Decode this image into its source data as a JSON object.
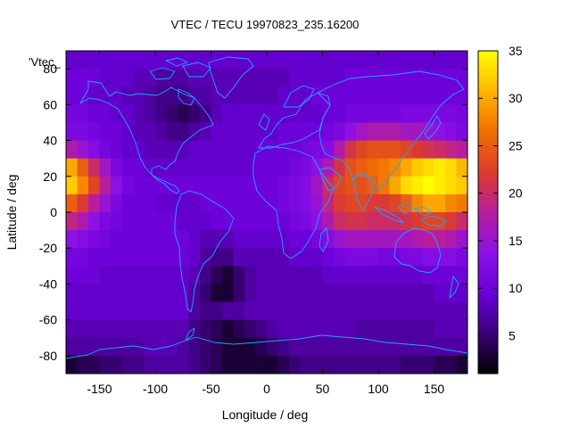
{
  "chart_data": {
    "type": "heatmap",
    "title": "VTEC / TECU 19970823_235.16200",
    "xlabel": "Longitude / deg",
    "ylabel": "Latitude / deg",
    "series_label": "'Vtec_",
    "xlim": [
      -180,
      180
    ],
    "ylim": [
      -90,
      90
    ],
    "xticks": [
      -150,
      -100,
      -50,
      0,
      50,
      100,
      150
    ],
    "yticks": [
      -80,
      -60,
      -40,
      -20,
      0,
      20,
      40,
      60,
      80
    ],
    "colorbar": {
      "range": [
        1,
        35
      ],
      "ticks": [
        5,
        10,
        15,
        20,
        25,
        30,
        35
      ],
      "palette": [
        "#000000",
        "#3a0078",
        "#6a00d8",
        "#8a10e6",
        "#b81e9c",
        "#dc3c2c",
        "#f07000",
        "#ffb400",
        "#ffff00"
      ]
    },
    "grid": {
      "lon_centers": [
        -175,
        -165,
        -155,
        -145,
        -135,
        -125,
        -115,
        -105,
        -95,
        -85,
        -75,
        -65,
        -55,
        -45,
        -35,
        -25,
        -15,
        -5,
        5,
        15,
        25,
        35,
        45,
        55,
        65,
        75,
        85,
        95,
        105,
        115,
        125,
        135,
        145,
        155,
        165,
        175
      ],
      "lat_centers": [
        85,
        75,
        65,
        55,
        45,
        35,
        25,
        15,
        5,
        -5,
        -15,
        -25,
        -35,
        -45,
        -55,
        -65,
        -75,
        -85
      ],
      "values": [
        [
          9,
          9,
          9,
          9,
          9,
          9,
          9,
          9,
          9,
          9,
          9,
          9,
          9,
          9,
          9,
          9,
          9,
          9,
          9,
          9,
          9,
          9,
          9,
          9,
          9,
          9,
          9,
          9,
          9,
          9,
          9,
          9,
          9,
          9,
          9,
          9
        ],
        [
          10,
          10,
          10,
          9,
          9,
          9,
          8,
          8,
          7,
          7,
          7,
          8,
          8,
          8,
          8,
          8,
          8,
          8,
          8,
          8,
          9,
          9,
          9,
          9,
          9,
          10,
          10,
          10,
          10,
          10,
          10,
          10,
          10,
          10,
          10,
          10
        ],
        [
          10,
          10,
          9,
          9,
          9,
          8,
          8,
          7,
          6,
          6,
          6,
          7,
          7,
          8,
          8,
          8,
          8,
          8,
          8,
          9,
          9,
          9,
          10,
          10,
          10,
          10,
          10,
          10,
          10,
          10,
          10,
          10,
          10,
          10,
          10,
          10
        ],
        [
          11,
          11,
          10,
          10,
          9,
          9,
          8,
          7,
          6,
          5,
          4,
          5,
          6,
          8,
          9,
          9,
          9,
          9,
          9,
          9,
          9,
          9,
          9,
          10,
          10,
          11,
          11,
          11,
          11,
          11,
          12,
          12,
          12,
          12,
          12,
          11
        ],
        [
          12,
          12,
          11,
          10,
          10,
          9,
          8,
          8,
          7,
          6,
          6,
          7,
          8,
          9,
          9,
          9,
          9,
          9,
          9,
          10,
          10,
          10,
          10,
          11,
          12,
          14,
          16,
          17,
          17,
          17,
          16,
          16,
          15,
          14,
          13,
          12
        ],
        [
          17,
          15,
          13,
          11,
          10,
          9,
          9,
          8,
          8,
          8,
          8,
          9,
          9,
          9,
          9,
          9,
          9,
          10,
          10,
          10,
          10,
          11,
          12,
          13,
          17,
          21,
          23,
          24,
          24,
          24,
          23,
          22,
          21,
          20,
          19,
          18
        ],
        [
          30,
          25,
          20,
          16,
          12,
          10,
          10,
          9,
          9,
          9,
          9,
          9,
          9,
          9,
          9,
          9,
          9,
          10,
          10,
          10,
          11,
          12,
          14,
          17,
          21,
          24,
          25,
          26,
          27,
          28,
          30,
          32,
          33,
          34,
          33,
          31
        ],
        [
          32,
          28,
          23,
          18,
          14,
          11,
          10,
          10,
          10,
          10,
          10,
          10,
          10,
          10,
          10,
          10,
          10,
          10,
          10,
          11,
          12,
          13,
          16,
          20,
          23,
          24,
          24,
          25,
          27,
          30,
          33,
          34,
          35,
          34,
          33,
          32
        ],
        [
          25,
          22,
          18,
          15,
          12,
          10,
          10,
          10,
          9,
          9,
          9,
          9,
          10,
          10,
          10,
          10,
          10,
          10,
          10,
          11,
          12,
          13,
          15,
          19,
          22,
          23,
          23,
          22,
          22,
          23,
          25,
          28,
          30,
          30,
          28,
          27
        ],
        [
          19,
          17,
          14,
          12,
          11,
          10,
          10,
          10,
          10,
          10,
          9,
          9,
          9,
          10,
          10,
          10,
          10,
          10,
          10,
          10,
          11,
          12,
          14,
          17,
          20,
          21,
          21,
          20,
          20,
          20,
          21,
          22,
          23,
          23,
          22,
          20
        ],
        [
          14,
          13,
          12,
          11,
          10,
          10,
          10,
          10,
          10,
          10,
          10,
          9,
          8,
          8,
          8,
          9,
          9,
          9,
          9,
          9,
          10,
          10,
          11,
          13,
          15,
          16,
          16,
          16,
          16,
          16,
          16,
          17,
          18,
          18,
          17,
          15
        ],
        [
          11,
          11,
          10,
          10,
          10,
          10,
          10,
          10,
          10,
          10,
          10,
          9,
          7,
          6,
          6,
          8,
          8,
          8,
          8,
          8,
          9,
          9,
          9,
          10,
          11,
          12,
          12,
          12,
          11,
          11,
          12,
          12,
          13,
          13,
          13,
          12
        ],
        [
          10,
          10,
          10,
          9,
          9,
          9,
          9,
          9,
          9,
          9,
          9,
          8,
          6,
          4,
          3,
          5,
          7,
          8,
          8,
          8,
          8,
          8,
          8,
          9,
          9,
          9,
          9,
          9,
          9,
          9,
          9,
          9,
          10,
          10,
          10,
          10
        ],
        [
          9,
          9,
          9,
          9,
          9,
          9,
          9,
          9,
          9,
          9,
          9,
          7,
          5,
          3,
          3,
          5,
          7,
          8,
          8,
          8,
          8,
          8,
          8,
          8,
          8,
          8,
          8,
          8,
          8,
          8,
          8,
          8,
          8,
          9,
          9,
          9
        ],
        [
          9,
          9,
          9,
          9,
          9,
          9,
          9,
          9,
          9,
          9,
          9,
          7,
          6,
          6,
          7,
          7,
          8,
          8,
          8,
          8,
          8,
          8,
          8,
          8,
          8,
          8,
          8,
          8,
          8,
          8,
          8,
          8,
          8,
          8,
          8,
          8
        ],
        [
          8,
          8,
          8,
          8,
          8,
          8,
          8,
          8,
          8,
          8,
          8,
          6,
          5,
          4,
          3,
          4,
          5,
          6,
          7,
          8,
          8,
          8,
          8,
          8,
          8,
          8,
          7,
          7,
          7,
          7,
          7,
          7,
          7,
          8,
          8,
          8
        ],
        [
          7,
          7,
          7,
          7,
          7,
          7,
          7,
          8,
          8,
          8,
          7,
          6,
          5,
          4,
          3,
          3,
          3,
          4,
          5,
          6,
          7,
          7,
          7,
          7,
          7,
          7,
          7,
          7,
          7,
          7,
          7,
          7,
          7,
          7,
          7,
          7
        ],
        [
          3,
          4,
          4,
          5,
          5,
          6,
          6,
          7,
          7,
          7,
          7,
          6,
          5,
          4,
          3,
          3,
          3,
          3,
          3,
          4,
          5,
          6,
          6,
          6,
          6,
          6,
          6,
          6,
          6,
          6,
          5,
          5,
          5,
          4,
          4,
          3
        ]
      ]
    },
    "overlay": "world coastlines"
  }
}
